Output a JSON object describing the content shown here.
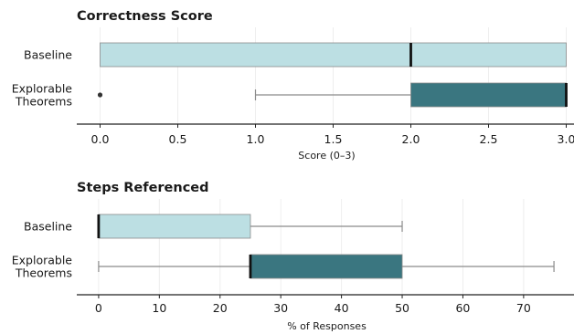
{
  "colors": {
    "baseline": "#bcdfe3",
    "explorable": "#3a7680",
    "box_edge": "#8a8a8a",
    "whisker": "#8a8a8a",
    "median": "#111111",
    "outlier": "#333333",
    "grid": "#eeeeee",
    "axis": "#222222"
  },
  "chart_data": [
    {
      "type": "boxplot",
      "orientation": "horizontal",
      "title": "Correctness Score",
      "xlabel": "Score (0–3)",
      "ylabel": "",
      "xlim": [
        -0.15,
        3.05
      ],
      "ticks": [
        0.0,
        0.5,
        1.0,
        1.5,
        2.0,
        2.5,
        3.0
      ],
      "tick_labels": [
        "0.0",
        "0.5",
        "1.0",
        "1.5",
        "2.0",
        "2.5",
        "3.0"
      ],
      "grid": true,
      "categories": [
        "Baseline",
        "Explorable Theorems"
      ],
      "series": [
        {
          "category": "Baseline",
          "label_lines": [
            "Baseline"
          ],
          "color_key": "baseline",
          "whisker_low": 0.0,
          "q1": 0.0,
          "median": 2.0,
          "q3": 3.0,
          "whisker_high": 3.0,
          "outliers": []
        },
        {
          "category": "Explorable Theorems",
          "label_lines": [
            "Explorable",
            "Theorems"
          ],
          "color_key": "explorable",
          "whisker_low": 1.0,
          "q1": 2.0,
          "median": 3.0,
          "q3": 3.0,
          "whisker_high": 3.0,
          "outliers": [
            0.0
          ]
        }
      ]
    },
    {
      "type": "boxplot",
      "orientation": "horizontal",
      "title": "Steps Referenced",
      "xlabel": "% of Responses",
      "ylabel": "",
      "xlim": [
        -3.6,
        78.3
      ],
      "ticks": [
        0,
        10,
        20,
        30,
        40,
        50,
        60,
        70
      ],
      "tick_labels": [
        "0",
        "10",
        "20",
        "30",
        "40",
        "50",
        "60",
        "70"
      ],
      "grid": true,
      "categories": [
        "Baseline",
        "Explorable Theorems"
      ],
      "series": [
        {
          "category": "Baseline",
          "label_lines": [
            "Baseline"
          ],
          "color_key": "baseline",
          "whisker_low": 0,
          "q1": 0,
          "median": 0,
          "q3": 25,
          "whisker_high": 50,
          "outliers": []
        },
        {
          "category": "Explorable Theorems",
          "label_lines": [
            "Explorable",
            "Theorems"
          ],
          "color_key": "explorable",
          "whisker_low": 0,
          "q1": 25,
          "median": 25,
          "q3": 50,
          "whisker_high": 75,
          "outliers": []
        }
      ]
    }
  ]
}
